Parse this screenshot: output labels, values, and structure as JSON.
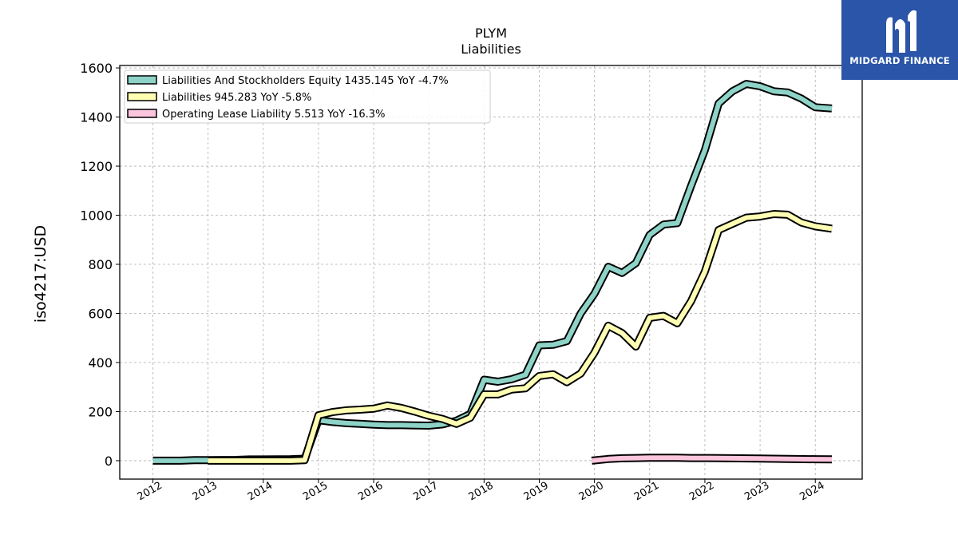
{
  "colors": {
    "series": [
      "#8dd3c7",
      "#ffffb3",
      "#fbc5dd"
    ],
    "logo_bg": "#2a55a8"
  },
  "logo": {
    "text": "MIDGARD FINANCE",
    "icon": "midgard-logo-icon"
  },
  "chart_data": {
    "type": "line",
    "title": "PLYM",
    "subtitle": "Liabilities",
    "xlabel": "",
    "ylabel": "iso4217:USD",
    "ylim": [
      -75,
      1610
    ],
    "xlim": [
      2011.4,
      2024.85
    ],
    "yticks": [
      0,
      200,
      400,
      600,
      800,
      1000,
      1200,
      1400,
      1600
    ],
    "xticks": [
      2012,
      2013,
      2014,
      2015,
      2016,
      2017,
      2018,
      2019,
      2020,
      2021,
      2022,
      2023,
      2024
    ],
    "grid": true,
    "legend_position": "top-left",
    "series": [
      {
        "name": "Liabilities And Stockholders Equity  1435.145 YoY -4.7%",
        "points": [
          [
            2012.0,
            0
          ],
          [
            2012.5,
            0
          ],
          [
            2012.75,
            2
          ],
          [
            2013.0,
            2
          ],
          [
            2013.5,
            3
          ],
          [
            2013.75,
            5
          ],
          [
            2014.0,
            5
          ],
          [
            2014.5,
            6
          ],
          [
            2014.75,
            8
          ],
          [
            2015.0,
            165
          ],
          [
            2015.25,
            158
          ],
          [
            2015.5,
            153
          ],
          [
            2015.75,
            150
          ],
          [
            2016.0,
            147
          ],
          [
            2016.25,
            145
          ],
          [
            2016.5,
            145
          ],
          [
            2016.75,
            144
          ],
          [
            2017.0,
            143
          ],
          [
            2017.25,
            148
          ],
          [
            2017.5,
            163
          ],
          [
            2017.75,
            190
          ],
          [
            2018.0,
            330
          ],
          [
            2018.25,
            322
          ],
          [
            2018.5,
            332
          ],
          [
            2018.75,
            350
          ],
          [
            2019.0,
            470
          ],
          [
            2019.25,
            472
          ],
          [
            2019.5,
            487
          ],
          [
            2019.75,
            600
          ],
          [
            2020.0,
            680
          ],
          [
            2020.25,
            790
          ],
          [
            2020.5,
            765
          ],
          [
            2020.75,
            805
          ],
          [
            2021.0,
            920
          ],
          [
            2021.25,
            962
          ],
          [
            2021.5,
            968
          ],
          [
            2021.75,
            1120
          ],
          [
            2022.0,
            1265
          ],
          [
            2022.25,
            1455
          ],
          [
            2022.5,
            1505
          ],
          [
            2022.75,
            1535
          ],
          [
            2023.0,
            1525
          ],
          [
            2023.25,
            1505
          ],
          [
            2023.5,
            1500
          ],
          [
            2023.75,
            1475
          ],
          [
            2024.0,
            1440
          ],
          [
            2024.3,
            1435
          ]
        ]
      },
      {
        "name": "Liabilities  945.283 YoY -5.8%",
        "points": [
          [
            2013.0,
            0
          ],
          [
            2013.5,
            0
          ],
          [
            2013.75,
            0
          ],
          [
            2014.0,
            0
          ],
          [
            2014.5,
            0
          ],
          [
            2014.75,
            2
          ],
          [
            2015.0,
            185
          ],
          [
            2015.25,
            198
          ],
          [
            2015.5,
            205
          ],
          [
            2015.75,
            208
          ],
          [
            2016.0,
            212
          ],
          [
            2016.25,
            225
          ],
          [
            2016.5,
            215
          ],
          [
            2016.75,
            200
          ],
          [
            2017.0,
            183
          ],
          [
            2017.25,
            170
          ],
          [
            2017.5,
            150
          ],
          [
            2017.75,
            175
          ],
          [
            2018.0,
            270
          ],
          [
            2018.25,
            270
          ],
          [
            2018.5,
            290
          ],
          [
            2018.75,
            295
          ],
          [
            2019.0,
            345
          ],
          [
            2019.25,
            352
          ],
          [
            2019.5,
            320
          ],
          [
            2019.75,
            355
          ],
          [
            2020.0,
            440
          ],
          [
            2020.25,
            550
          ],
          [
            2020.5,
            520
          ],
          [
            2020.75,
            465
          ],
          [
            2021.0,
            582
          ],
          [
            2021.25,
            590
          ],
          [
            2021.5,
            560
          ],
          [
            2021.75,
            650
          ],
          [
            2022.0,
            770
          ],
          [
            2022.25,
            940
          ],
          [
            2022.5,
            965
          ],
          [
            2022.75,
            990
          ],
          [
            2023.0,
            995
          ],
          [
            2023.25,
            1005
          ],
          [
            2023.5,
            1002
          ],
          [
            2023.75,
            970
          ],
          [
            2024.0,
            955
          ],
          [
            2024.3,
            945
          ]
        ]
      },
      {
        "name": "Operating Lease Liability  5.513 YoY -16.3%",
        "points": [
          [
            2019.95,
            0
          ],
          [
            2020.25,
            7
          ],
          [
            2020.5,
            10
          ],
          [
            2020.75,
            11
          ],
          [
            2021.0,
            12
          ],
          [
            2021.25,
            12
          ],
          [
            2021.5,
            12
          ],
          [
            2021.75,
            11
          ],
          [
            2022.0,
            11
          ],
          [
            2022.5,
            10
          ],
          [
            2023.0,
            9
          ],
          [
            2023.5,
            7
          ],
          [
            2024.0,
            6
          ],
          [
            2024.3,
            5.5
          ]
        ]
      }
    ]
  }
}
